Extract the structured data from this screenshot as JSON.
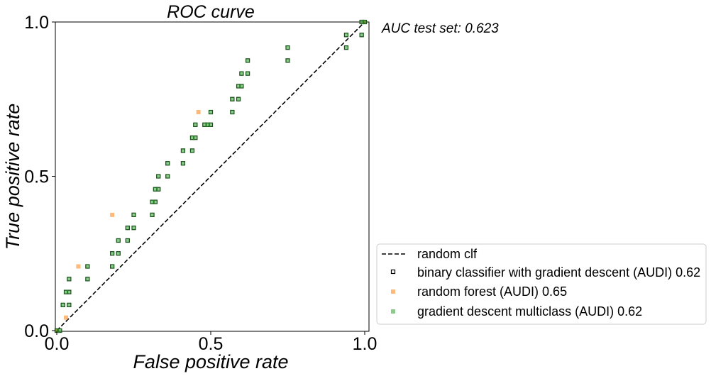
{
  "chart_data": {
    "type": "scatter",
    "title": "ROC curve",
    "xlabel": "False positive rate",
    "ylabel": "True positive rate",
    "xlim": [
      0,
      1
    ],
    "ylim": [
      0,
      1
    ],
    "xticks": [
      "0.0",
      "0.5",
      "1.0"
    ],
    "yticks": [
      "0.0",
      "0.5",
      "1.0"
    ],
    "annotation": "AUC test set: 0.623",
    "grid": false,
    "legend_position": "lower-right outside",
    "diagonal": {
      "name": "random clf",
      "style": "dashed",
      "color": "#000000",
      "x": [
        0,
        1
      ],
      "y": [
        0,
        1
      ]
    },
    "series": [
      {
        "name": "binary classifier with gradient descent (AUDI) 0.62",
        "marker": "square-hollow",
        "color": "#000000",
        "points": [
          [
            0.0,
            0.0
          ],
          [
            0.01,
            0.0
          ],
          [
            0.02,
            0.083
          ],
          [
            0.04,
            0.083
          ],
          [
            0.03,
            0.125
          ],
          [
            0.04,
            0.125
          ],
          [
            0.04,
            0.167
          ],
          [
            0.1,
            0.167
          ],
          [
            0.1,
            0.208
          ],
          [
            0.18,
            0.208
          ],
          [
            0.18,
            0.25
          ],
          [
            0.2,
            0.25
          ],
          [
            0.2,
            0.292
          ],
          [
            0.23,
            0.292
          ],
          [
            0.23,
            0.333
          ],
          [
            0.25,
            0.333
          ],
          [
            0.25,
            0.375
          ],
          [
            0.31,
            0.375
          ],
          [
            0.31,
            0.417
          ],
          [
            0.32,
            0.417
          ],
          [
            0.32,
            0.458
          ],
          [
            0.33,
            0.458
          ],
          [
            0.33,
            0.5
          ],
          [
            0.36,
            0.5
          ],
          [
            0.36,
            0.542
          ],
          [
            0.41,
            0.542
          ],
          [
            0.41,
            0.583
          ],
          [
            0.44,
            0.583
          ],
          [
            0.44,
            0.625
          ],
          [
            0.45,
            0.625
          ],
          [
            0.45,
            0.667
          ],
          [
            0.48,
            0.667
          ],
          [
            0.49,
            0.667
          ],
          [
            0.5,
            0.667
          ],
          [
            0.5,
            0.708
          ],
          [
            0.57,
            0.708
          ],
          [
            0.57,
            0.75
          ],
          [
            0.59,
            0.75
          ],
          [
            0.59,
            0.792
          ],
          [
            0.6,
            0.792
          ],
          [
            0.6,
            0.833
          ],
          [
            0.62,
            0.833
          ],
          [
            0.62,
            0.875
          ],
          [
            0.75,
            0.875
          ],
          [
            0.75,
            0.917
          ],
          [
            0.94,
            0.917
          ],
          [
            0.94,
            0.958
          ],
          [
            0.99,
            0.958
          ],
          [
            0.99,
            1.0
          ],
          [
            1.0,
            1.0
          ]
        ]
      },
      {
        "name": "random forest (AUDI) 0.65",
        "marker": "square",
        "color": "#ff7f0e",
        "points": [
          [
            0.0,
            0.0
          ],
          [
            0.03,
            0.042
          ],
          [
            0.07,
            0.208
          ],
          [
            0.18,
            0.375
          ],
          [
            0.46,
            0.708
          ],
          [
            1.0,
            1.0
          ]
        ]
      },
      {
        "name": "gradient descent multiclass (AUDI) 0.62",
        "marker": "square",
        "color": "#2ca02c",
        "points": [
          [
            0.0,
            0.0
          ],
          [
            0.01,
            0.0
          ],
          [
            0.02,
            0.083
          ],
          [
            0.04,
            0.083
          ],
          [
            0.03,
            0.125
          ],
          [
            0.04,
            0.125
          ],
          [
            0.04,
            0.167
          ],
          [
            0.1,
            0.167
          ],
          [
            0.1,
            0.208
          ],
          [
            0.18,
            0.208
          ],
          [
            0.18,
            0.25
          ],
          [
            0.2,
            0.25
          ],
          [
            0.2,
            0.292
          ],
          [
            0.23,
            0.292
          ],
          [
            0.23,
            0.333
          ],
          [
            0.25,
            0.333
          ],
          [
            0.25,
            0.375
          ],
          [
            0.31,
            0.375
          ],
          [
            0.31,
            0.417
          ],
          [
            0.32,
            0.417
          ],
          [
            0.32,
            0.458
          ],
          [
            0.33,
            0.458
          ],
          [
            0.33,
            0.5
          ],
          [
            0.36,
            0.5
          ],
          [
            0.36,
            0.542
          ],
          [
            0.41,
            0.542
          ],
          [
            0.41,
            0.583
          ],
          [
            0.44,
            0.583
          ],
          [
            0.44,
            0.625
          ],
          [
            0.45,
            0.625
          ],
          [
            0.45,
            0.667
          ],
          [
            0.48,
            0.667
          ],
          [
            0.49,
            0.667
          ],
          [
            0.5,
            0.667
          ],
          [
            0.5,
            0.708
          ],
          [
            0.57,
            0.708
          ],
          [
            0.57,
            0.75
          ],
          [
            0.59,
            0.75
          ],
          [
            0.59,
            0.792
          ],
          [
            0.6,
            0.792
          ],
          [
            0.6,
            0.833
          ],
          [
            0.62,
            0.833
          ],
          [
            0.62,
            0.875
          ],
          [
            0.75,
            0.875
          ],
          [
            0.75,
            0.917
          ],
          [
            0.94,
            0.917
          ],
          [
            0.94,
            0.958
          ],
          [
            0.99,
            0.958
          ],
          [
            0.99,
            1.0
          ],
          [
            1.0,
            1.0
          ]
        ]
      }
    ]
  }
}
